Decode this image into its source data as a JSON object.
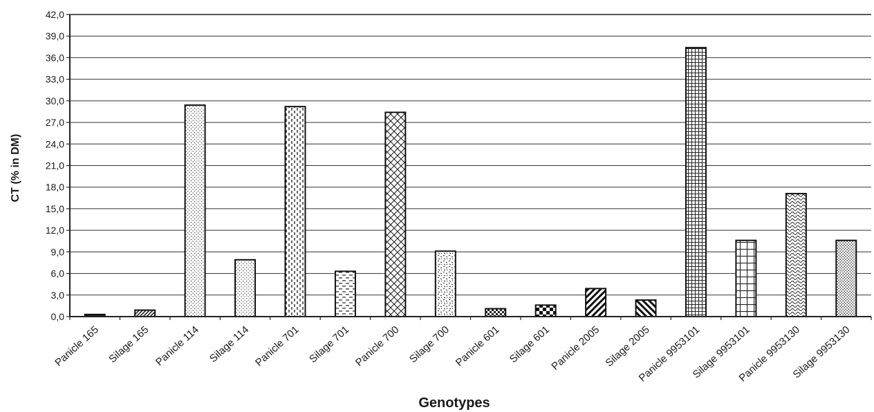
{
  "chart_data": {
    "type": "bar",
    "title": "",
    "xlabel": "Genotypes",
    "ylabel": "CT (% in DM)",
    "ylim": [
      0,
      42
    ],
    "ytick_step": 3,
    "ytick_labels": [
      "0,0",
      "3,0",
      "6,0",
      "9,0",
      "12,0",
      "15,0",
      "18,0",
      "21,0",
      "24,0",
      "27,0",
      "30,0",
      "33,0",
      "36,0",
      "39,0",
      "42,0"
    ],
    "grid": true,
    "legend": "none",
    "categories": [
      "Panicle 165",
      "Silage 165",
      "Panicle 114",
      "Silage 114",
      "Panicle 701",
      "Silage 701",
      "Panicle 700",
      "Silage 700",
      "Panicle 601",
      "Silage 601",
      "Panicle 2005",
      "Silage 2005",
      "Panicle 9953101",
      "Silage 9953101",
      "Panicle 9953130",
      "Silage 9953130"
    ],
    "values": [
      0.3,
      0.9,
      29.4,
      7.9,
      29.2,
      6.3,
      28.4,
      9.1,
      1.1,
      1.6,
      3.9,
      2.3,
      37.4,
      10.6,
      17.1,
      10.6
    ],
    "patterns": [
      "solid",
      "diagonal-stripes",
      "fine-dots",
      "fine-dots",
      "vertical-dashes",
      "horizontal-dashes",
      "diamond-lattice",
      "confetti",
      "checker",
      "large-checker",
      "wide-diagonal",
      "wide-back-diagonal",
      "small-grid",
      "large-grid",
      "waves",
      "dense-dots"
    ]
  }
}
